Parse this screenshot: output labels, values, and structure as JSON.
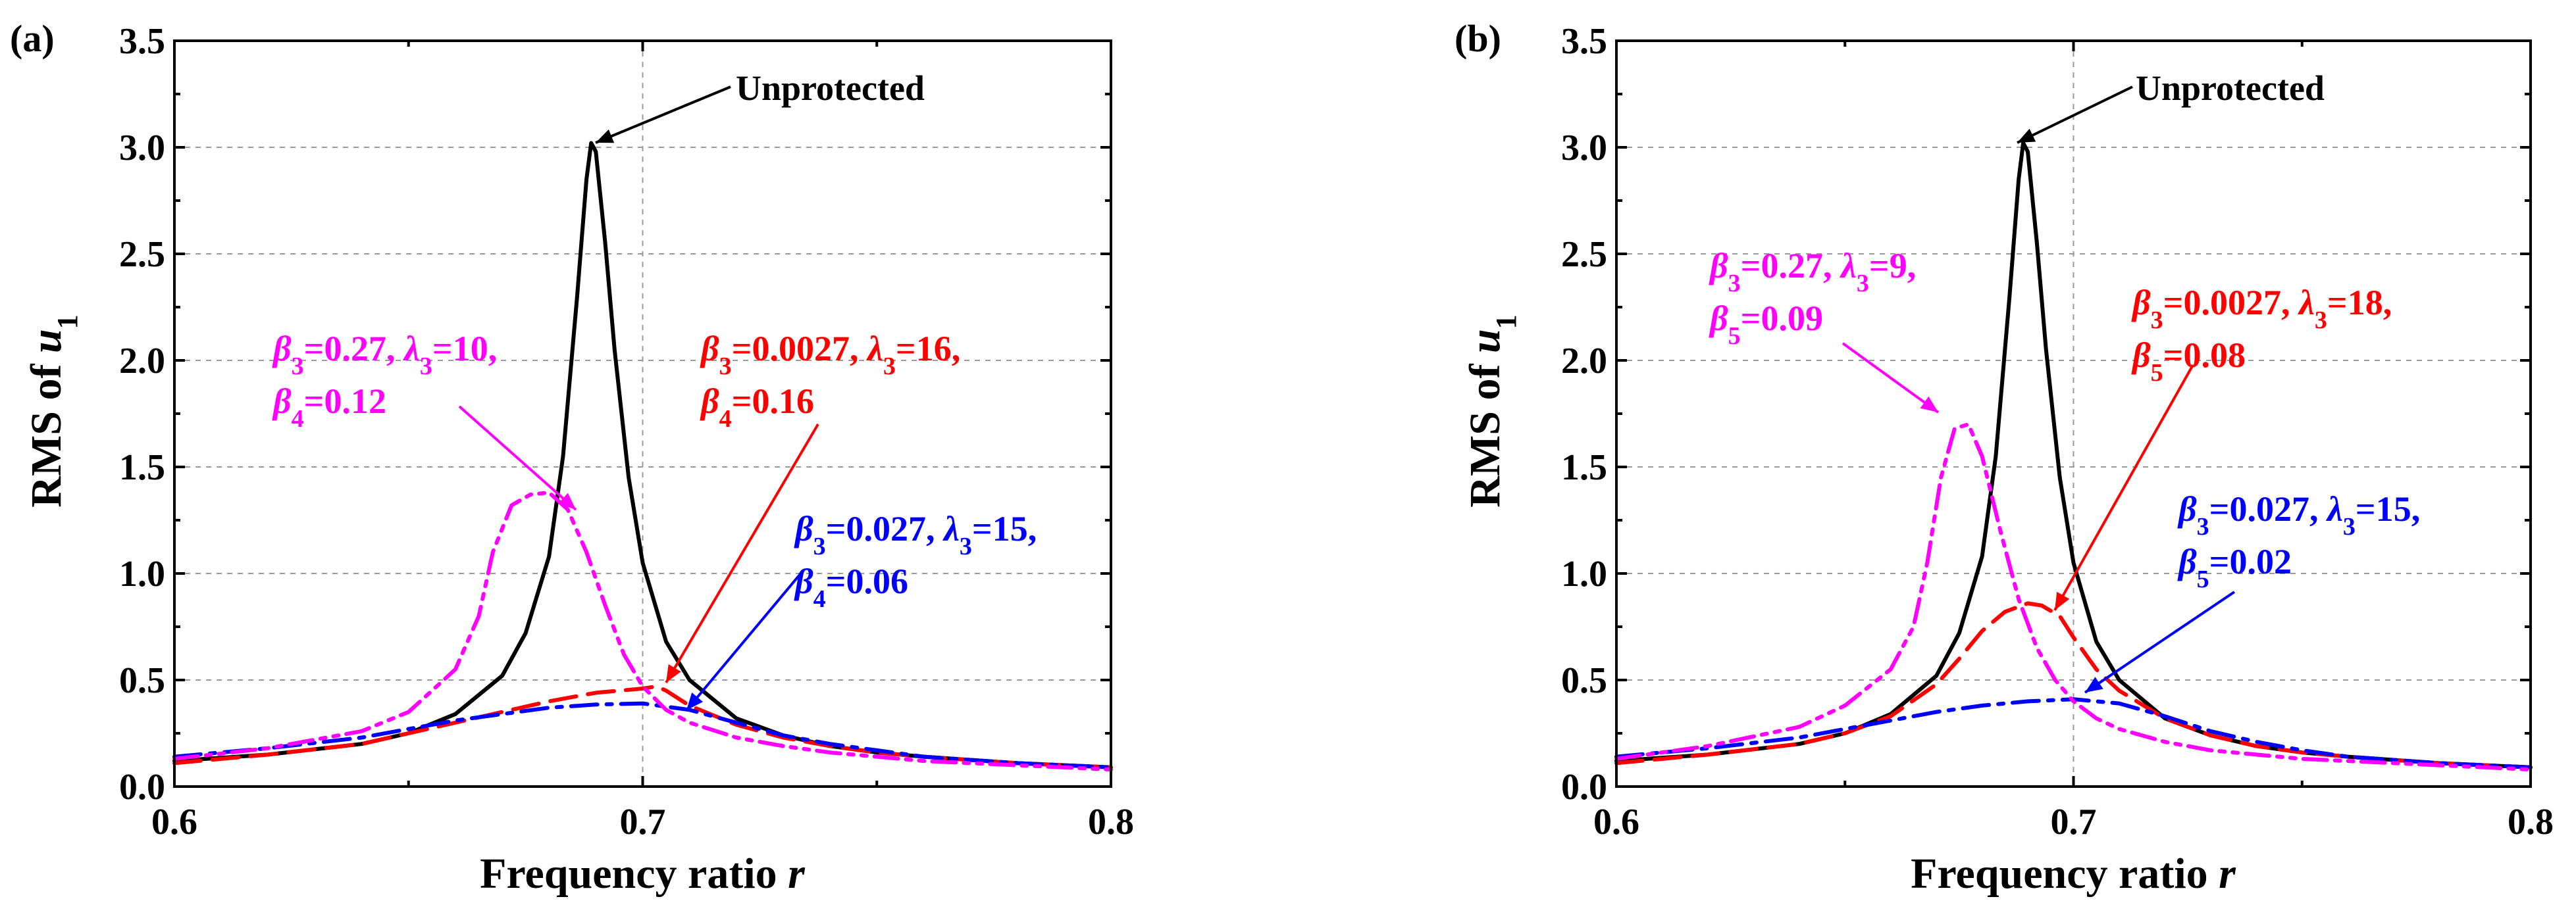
{
  "chart_data": [
    {
      "type": "line",
      "panel": "(a)",
      "title": "",
      "xlabel": "Frequency ratio r",
      "ylabel": "RMS of u1",
      "xlim": [
        0.6,
        0.8
      ],
      "ylim": [
        0,
        3.5
      ],
      "xticks": [
        "0.6",
        "0.7",
        "0.8"
      ],
      "yticks": [
        "0.0",
        "0.5",
        "1.0",
        "1.5",
        "2.0",
        "2.5",
        "3.0",
        "3.5"
      ],
      "grid": true,
      "series": [
        {
          "name": "Unprotected",
          "color": "#000000",
          "style": "solid",
          "x": [
            0.6,
            0.62,
            0.64,
            0.65,
            0.66,
            0.67,
            0.675,
            0.68,
            0.683,
            0.686,
            0.688,
            0.689,
            0.69,
            0.692,
            0.694,
            0.697,
            0.7,
            0.705,
            0.71,
            0.72,
            0.73,
            0.74,
            0.75,
            0.76,
            0.78,
            0.8
          ],
          "y": [
            0.12,
            0.15,
            0.2,
            0.25,
            0.34,
            0.52,
            0.72,
            1.08,
            1.55,
            2.3,
            2.85,
            3.02,
            2.98,
            2.55,
            2.05,
            1.45,
            1.05,
            0.68,
            0.5,
            0.32,
            0.24,
            0.19,
            0.16,
            0.14,
            0.11,
            0.09
          ]
        },
        {
          "name": "beta3=0.0027, lambda3=16, beta4=0.16",
          "color": "#ff0000",
          "style": "dash",
          "x": [
            0.6,
            0.62,
            0.64,
            0.65,
            0.66,
            0.67,
            0.68,
            0.69,
            0.7,
            0.703,
            0.705,
            0.71,
            0.72,
            0.73,
            0.74,
            0.75,
            0.76,
            0.78,
            0.8
          ],
          "y": [
            0.11,
            0.15,
            0.2,
            0.25,
            0.3,
            0.35,
            0.4,
            0.44,
            0.46,
            0.47,
            0.45,
            0.38,
            0.29,
            0.23,
            0.19,
            0.16,
            0.14,
            0.11,
            0.09
          ]
        },
        {
          "name": "beta3=0.027, lambda3=15, beta4=0.06",
          "color": "#0000ff",
          "style": "dashdot",
          "x": [
            0.6,
            0.62,
            0.64,
            0.65,
            0.66,
            0.67,
            0.68,
            0.69,
            0.7,
            0.71,
            0.72,
            0.73,
            0.74,
            0.75,
            0.76,
            0.78,
            0.8
          ],
          "y": [
            0.14,
            0.18,
            0.23,
            0.27,
            0.31,
            0.34,
            0.37,
            0.385,
            0.39,
            0.36,
            0.3,
            0.24,
            0.2,
            0.17,
            0.14,
            0.11,
            0.09
          ]
        },
        {
          "name": "beta3=0.27, lambda3=10, beta4=0.12",
          "color": "#ff00ff",
          "style": "dashdotdot",
          "x": [
            0.6,
            0.62,
            0.64,
            0.65,
            0.66,
            0.665,
            0.668,
            0.672,
            0.676,
            0.68,
            0.684,
            0.688,
            0.692,
            0.696,
            0.7,
            0.705,
            0.71,
            0.72,
            0.73,
            0.74,
            0.75,
            0.76,
            0.78,
            0.8
          ],
          "y": [
            0.13,
            0.18,
            0.26,
            0.35,
            0.55,
            0.8,
            1.1,
            1.32,
            1.37,
            1.38,
            1.3,
            1.1,
            0.85,
            0.62,
            0.47,
            0.36,
            0.3,
            0.23,
            0.19,
            0.16,
            0.14,
            0.12,
            0.1,
            0.08
          ]
        }
      ],
      "annotations": [
        {
          "lines": [
            [
              {
                "t": "Unprotected"
              }
            ]
          ],
          "color": "#000000"
        },
        {
          "lines": [
            [
              {
                "t": "β",
                "i": true
              },
              {
                "t": "3",
                "sub": true
              },
              {
                "t": "=0.27, "
              },
              {
                "t": "λ",
                "i": true
              },
              {
                "t": "3",
                "sub": true
              },
              {
                "t": "=10,"
              }
            ],
            [
              {
                "t": "β",
                "i": true
              },
              {
                "t": "4",
                "sub": true
              },
              {
                "t": "=0.12"
              }
            ]
          ],
          "color": "#ff00ff"
        },
        {
          "lines": [
            [
              {
                "t": "β",
                "i": true
              },
              {
                "t": "3",
                "sub": true
              },
              {
                "t": "=0.0027, "
              },
              {
                "t": "λ",
                "i": true
              },
              {
                "t": "3",
                "sub": true
              },
              {
                "t": "=16,"
              }
            ],
            [
              {
                "t": "β",
                "i": true
              },
              {
                "t": "4",
                "sub": true
              },
              {
                "t": "=0.16"
              }
            ]
          ],
          "color": "#ff0000"
        },
        {
          "lines": [
            [
              {
                "t": "β",
                "i": true
              },
              {
                "t": "3",
                "sub": true
              },
              {
                "t": "=0.027, "
              },
              {
                "t": "λ",
                "i": true
              },
              {
                "t": "3",
                "sub": true
              },
              {
                "t": "=15,"
              }
            ],
            [
              {
                "t": "β",
                "i": true
              },
              {
                "t": "4",
                "sub": true
              },
              {
                "t": "=0.06"
              }
            ]
          ],
          "color": "#0000ff"
        }
      ]
    },
    {
      "type": "line",
      "panel": "(b)",
      "title": "",
      "xlabel": "Frequency ratio r",
      "ylabel": "RMS of u1",
      "xlim": [
        0.6,
        0.8
      ],
      "ylim": [
        0,
        3.5
      ],
      "xticks": [
        "0.6",
        "0.7",
        "0.8"
      ],
      "yticks": [
        "0.0",
        "0.5",
        "1.0",
        "1.5",
        "2.0",
        "2.5",
        "3.0",
        "3.5"
      ],
      "grid": true,
      "series": [
        {
          "name": "Unprotected",
          "color": "#000000",
          "style": "solid",
          "x": [
            0.6,
            0.62,
            0.64,
            0.65,
            0.66,
            0.67,
            0.675,
            0.68,
            0.683,
            0.686,
            0.688,
            0.689,
            0.69,
            0.692,
            0.694,
            0.697,
            0.7,
            0.705,
            0.71,
            0.72,
            0.73,
            0.74,
            0.75,
            0.76,
            0.78,
            0.8
          ],
          "y": [
            0.12,
            0.15,
            0.2,
            0.25,
            0.34,
            0.52,
            0.72,
            1.08,
            1.55,
            2.3,
            2.85,
            3.02,
            2.98,
            2.55,
            2.05,
            1.45,
            1.05,
            0.68,
            0.5,
            0.32,
            0.24,
            0.19,
            0.16,
            0.14,
            0.11,
            0.09
          ]
        },
        {
          "name": "beta3=0.0027, lambda3=18, beta5=0.08",
          "color": "#ff0000",
          "style": "dash",
          "x": [
            0.6,
            0.62,
            0.64,
            0.65,
            0.66,
            0.67,
            0.675,
            0.68,
            0.685,
            0.69,
            0.693,
            0.697,
            0.7,
            0.705,
            0.71,
            0.72,
            0.73,
            0.74,
            0.75,
            0.76,
            0.78,
            0.8
          ],
          "y": [
            0.11,
            0.15,
            0.2,
            0.25,
            0.33,
            0.48,
            0.6,
            0.73,
            0.82,
            0.86,
            0.85,
            0.8,
            0.7,
            0.55,
            0.45,
            0.32,
            0.24,
            0.19,
            0.16,
            0.14,
            0.11,
            0.09
          ]
        },
        {
          "name": "beta3=0.027, lambda3=15, beta5=0.02",
          "color": "#0000ff",
          "style": "dashdot",
          "x": [
            0.6,
            0.62,
            0.64,
            0.65,
            0.66,
            0.67,
            0.68,
            0.69,
            0.7,
            0.71,
            0.72,
            0.73,
            0.74,
            0.75,
            0.76,
            0.78,
            0.8
          ],
          "y": [
            0.14,
            0.18,
            0.23,
            0.27,
            0.31,
            0.35,
            0.38,
            0.4,
            0.41,
            0.39,
            0.33,
            0.26,
            0.21,
            0.17,
            0.14,
            0.11,
            0.09
          ]
        },
        {
          "name": "beta3=0.27, lambda3=9, beta5=0.09",
          "color": "#ff00ff",
          "style": "dashdotdot",
          "x": [
            0.6,
            0.62,
            0.64,
            0.65,
            0.66,
            0.665,
            0.668,
            0.671,
            0.674,
            0.677,
            0.68,
            0.684,
            0.688,
            0.692,
            0.696,
            0.7,
            0.705,
            0.71,
            0.72,
            0.73,
            0.74,
            0.75,
            0.76,
            0.78,
            0.8
          ],
          "y": [
            0.13,
            0.19,
            0.28,
            0.38,
            0.55,
            0.75,
            1.05,
            1.45,
            1.68,
            1.7,
            1.55,
            1.2,
            0.88,
            0.65,
            0.5,
            0.4,
            0.32,
            0.27,
            0.21,
            0.17,
            0.15,
            0.13,
            0.12,
            0.1,
            0.08
          ]
        }
      ],
      "annotations": [
        {
          "lines": [
            [
              {
                "t": "Unprotected"
              }
            ]
          ],
          "color": "#000000"
        },
        {
          "lines": [
            [
              {
                "t": "β",
                "i": true
              },
              {
                "t": "3",
                "sub": true
              },
              {
                "t": "=0.27, "
              },
              {
                "t": "λ",
                "i": true
              },
              {
                "t": "3",
                "sub": true
              },
              {
                "t": "=9,"
              }
            ],
            [
              {
                "t": "β",
                "i": true
              },
              {
                "t": "5",
                "sub": true
              },
              {
                "t": "=0.09"
              }
            ]
          ],
          "color": "#ff00ff"
        },
        {
          "lines": [
            [
              {
                "t": "β",
                "i": true
              },
              {
                "t": "3",
                "sub": true
              },
              {
                "t": "=0.0027, "
              },
              {
                "t": "λ",
                "i": true
              },
              {
                "t": "3",
                "sub": true
              },
              {
                "t": "=18,"
              }
            ],
            [
              {
                "t": "β",
                "i": true
              },
              {
                "t": "5",
                "sub": true
              },
              {
                "t": "=0.08"
              }
            ]
          ],
          "color": "#ff0000"
        },
        {
          "lines": [
            [
              {
                "t": "β",
                "i": true
              },
              {
                "t": "3",
                "sub": true
              },
              {
                "t": "=0.027, "
              },
              {
                "t": "λ",
                "i": true
              },
              {
                "t": "3",
                "sub": true
              },
              {
                "t": "=15,"
              }
            ],
            [
              {
                "t": "β",
                "i": true
              },
              {
                "t": "5",
                "sub": true
              },
              {
                "t": "=0.02"
              }
            ]
          ],
          "color": "#0000ff"
        }
      ]
    }
  ]
}
